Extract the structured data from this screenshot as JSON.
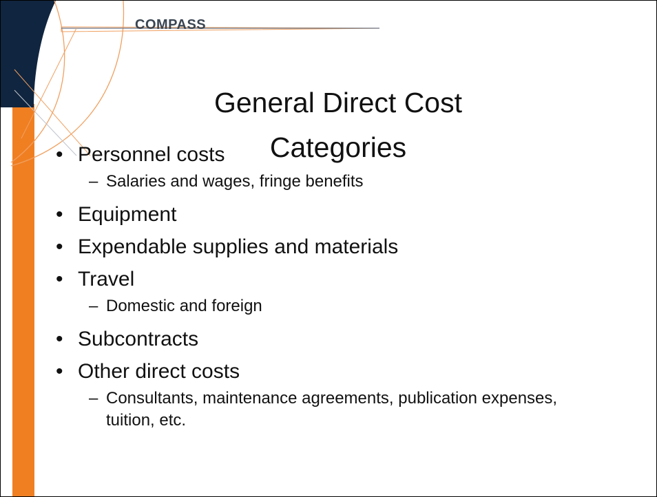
{
  "logo": "COMPASS",
  "title_lines": [
    "General Direct Cost",
    "Categories"
  ],
  "bullets": [
    {
      "text": "Personnel costs",
      "sub": [
        "Salaries and wages, fringe benefits"
      ]
    },
    {
      "text": "Equipment",
      "sub": []
    },
    {
      "text": "Expendable supplies and materials",
      "sub": []
    },
    {
      "text": "Travel",
      "sub": [
        "Domestic and foreign"
      ]
    },
    {
      "text": "Subcontracts",
      "sub": []
    },
    {
      "text": "Other direct costs",
      "sub": [
        "Consultants, maintenance agreements, publication expenses, tuition, etc."
      ]
    }
  ]
}
